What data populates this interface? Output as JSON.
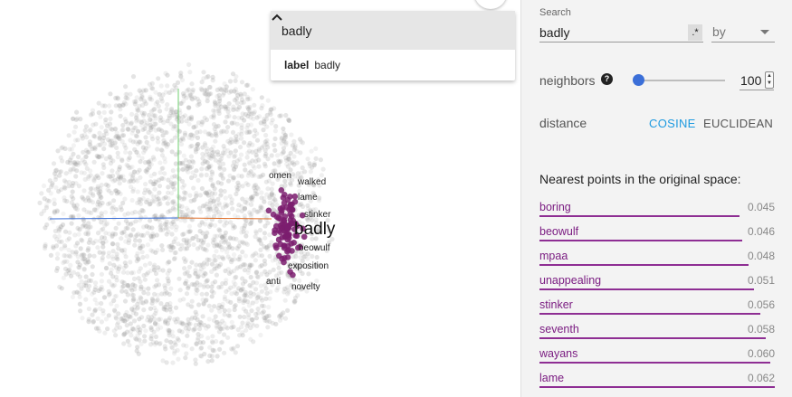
{
  "search_result": {
    "query": "badly",
    "field_label": "label",
    "field_value": "badly"
  },
  "panel": {
    "search_label": "Search",
    "search_value": "badly",
    "regex_label": ".*",
    "by_placeholder": "by",
    "neighbors_label": "neighbors",
    "neighbors_value": "100",
    "neighbors_fraction": 0.05,
    "distance_label": "distance",
    "cosine_label": "COSINE",
    "euclidean_label": "EUCLIDEAN",
    "nearest_title": "Nearest points in the original space:",
    "nearest": [
      {
        "word": "boring",
        "dist": "0.045",
        "bar": 0.85
      },
      {
        "word": "beowulf",
        "dist": "0.046",
        "bar": 0.86
      },
      {
        "word": "mpaa",
        "dist": "0.048",
        "bar": 0.89
      },
      {
        "word": "unappealing",
        "dist": "0.051",
        "bar": 0.91
      },
      {
        "word": "stinker",
        "dist": "0.056",
        "bar": 0.94
      },
      {
        "word": "seventh",
        "dist": "0.058",
        "bar": 0.96
      },
      {
        "word": "wayans",
        "dist": "0.060",
        "bar": 0.98
      },
      {
        "word": "lame",
        "dist": "0.062",
        "bar": 1.0
      }
    ]
  },
  "projection": {
    "focus_label": "badly",
    "neighbor_labels": [
      "omen",
      "walked",
      "lame",
      "stinker",
      "beowulf",
      "exposition",
      "anti",
      "novelty"
    ],
    "colors": {
      "neighbor": "#7b1d6f",
      "cloud": "#9a9a9a",
      "axis_x": "#3b6fd8",
      "axis_y": "#6fcf6f",
      "axis_z": "#e0702a"
    }
  }
}
